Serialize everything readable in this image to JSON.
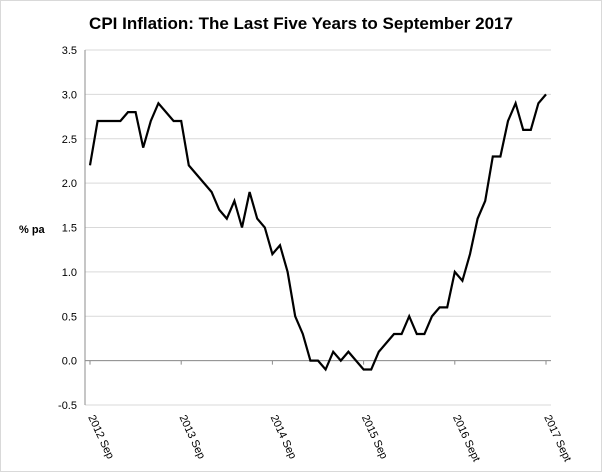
{
  "chart_data": {
    "type": "line",
    "title": "CPI Inflation: The Last Five Years to September 2017",
    "ylabel": "% pa",
    "xlabel": "",
    "ylim": [
      -0.5,
      3.5
    ],
    "yticks": [
      "3.5",
      "3.0",
      "2.5",
      "2.0",
      "1.5",
      "1.0",
      "0.5",
      "0.0",
      "-0.5"
    ],
    "yticks_values": [
      3.5,
      3.0,
      2.5,
      2.0,
      1.5,
      1.0,
      0.5,
      0.0,
      -0.5
    ],
    "xticks": [
      "2012 Sep",
      "2013 Sep",
      "2014 Sep",
      "2015 Sep",
      "2016 Sept",
      "2017 Sept"
    ],
    "grid": "horizontal",
    "legend": "none",
    "line_color": "#000000",
    "x": [
      "2012-09",
      "2012-10",
      "2012-11",
      "2012-12",
      "2013-01",
      "2013-02",
      "2013-03",
      "2013-04",
      "2013-05",
      "2013-06",
      "2013-07",
      "2013-08",
      "2013-09",
      "2013-10",
      "2013-11",
      "2013-12",
      "2014-01",
      "2014-02",
      "2014-03",
      "2014-04",
      "2014-05",
      "2014-06",
      "2014-07",
      "2014-08",
      "2014-09",
      "2014-10",
      "2014-11",
      "2014-12",
      "2015-01",
      "2015-02",
      "2015-03",
      "2015-04",
      "2015-05",
      "2015-06",
      "2015-07",
      "2015-08",
      "2015-09",
      "2015-10",
      "2015-11",
      "2015-12",
      "2016-01",
      "2016-02",
      "2016-03",
      "2016-04",
      "2016-05",
      "2016-06",
      "2016-07",
      "2016-08",
      "2016-09",
      "2016-10",
      "2016-11",
      "2016-12",
      "2017-01",
      "2017-02",
      "2017-03",
      "2017-04",
      "2017-05",
      "2017-06",
      "2017-07",
      "2017-08",
      "2017-09"
    ],
    "values": [
      2.2,
      2.7,
      2.7,
      2.7,
      2.7,
      2.8,
      2.8,
      2.4,
      2.7,
      2.9,
      2.8,
      2.7,
      2.7,
      2.2,
      2.1,
      2.0,
      1.9,
      1.7,
      1.6,
      1.8,
      1.5,
      1.9,
      1.6,
      1.5,
      1.2,
      1.3,
      1.0,
      0.5,
      0.3,
      0.0,
      0.0,
      -0.1,
      0.1,
      0.0,
      0.1,
      0.0,
      -0.1,
      -0.1,
      0.1,
      0.2,
      0.3,
      0.3,
      0.5,
      0.3,
      0.3,
      0.5,
      0.6,
      0.6,
      1.0,
      0.9,
      1.2,
      1.6,
      1.8,
      2.3,
      2.3,
      2.7,
      2.9,
      2.6,
      2.6,
      2.9,
      3.0
    ]
  }
}
